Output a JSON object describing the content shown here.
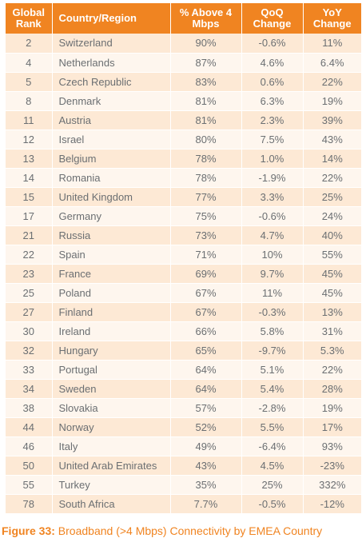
{
  "table": {
    "headers": {
      "rank": "Global Rank",
      "country": "Country/Region",
      "above4": "% Above 4 Mbps",
      "qoq": "QoQ Change",
      "yoy": "YoY Change"
    },
    "rows": [
      {
        "rank": "2",
        "country": "Switzerland",
        "above4": "90%",
        "qoq": "-0.6%",
        "yoy": "11%"
      },
      {
        "rank": "4",
        "country": "Netherlands",
        "above4": "87%",
        "qoq": "4.6%",
        "yoy": "6.4%"
      },
      {
        "rank": "5",
        "country": "Czech Republic",
        "above4": "83%",
        "qoq": "0.6%",
        "yoy": "22%"
      },
      {
        "rank": "8",
        "country": "Denmark",
        "above4": "81%",
        "qoq": "6.3%",
        "yoy": "19%"
      },
      {
        "rank": "11",
        "country": "Austria",
        "above4": "81%",
        "qoq": "2.3%",
        "yoy": "39%"
      },
      {
        "rank": "12",
        "country": "Israel",
        "above4": "80%",
        "qoq": "7.5%",
        "yoy": "43%"
      },
      {
        "rank": "13",
        "country": "Belgium",
        "above4": "78%",
        "qoq": "1.0%",
        "yoy": "14%"
      },
      {
        "rank": "14",
        "country": "Romania",
        "above4": "78%",
        "qoq": "-1.9%",
        "yoy": "22%"
      },
      {
        "rank": "15",
        "country": "United Kingdom",
        "above4": "77%",
        "qoq": "3.3%",
        "yoy": "25%"
      },
      {
        "rank": "17",
        "country": "Germany",
        "above4": "75%",
        "qoq": "-0.6%",
        "yoy": "24%"
      },
      {
        "rank": "21",
        "country": "Russia",
        "above4": "73%",
        "qoq": "4.7%",
        "yoy": "40%"
      },
      {
        "rank": "22",
        "country": "Spain",
        "above4": "71%",
        "qoq": "10%",
        "yoy": "55%"
      },
      {
        "rank": "23",
        "country": "France",
        "above4": "69%",
        "qoq": "9.7%",
        "yoy": "45%"
      },
      {
        "rank": "25",
        "country": "Poland",
        "above4": "67%",
        "qoq": "11%",
        "yoy": "45%"
      },
      {
        "rank": "27",
        "country": "Finland",
        "above4": "67%",
        "qoq": "-0.3%",
        "yoy": "13%"
      },
      {
        "rank": "30",
        "country": "Ireland",
        "above4": "66%",
        "qoq": "5.8%",
        "yoy": "31%"
      },
      {
        "rank": "32",
        "country": "Hungary",
        "above4": "65%",
        "qoq": "-9.7%",
        "yoy": "5.3%"
      },
      {
        "rank": "33",
        "country": "Portugal",
        "above4": "64%",
        "qoq": "5.1%",
        "yoy": "22%"
      },
      {
        "rank": "34",
        "country": "Sweden",
        "above4": "64%",
        "qoq": "5.4%",
        "yoy": "28%"
      },
      {
        "rank": "38",
        "country": "Slovakia",
        "above4": "57%",
        "qoq": "-2.8%",
        "yoy": "19%"
      },
      {
        "rank": "44",
        "country": "Norway",
        "above4": "52%",
        "qoq": "5.5%",
        "yoy": "17%"
      },
      {
        "rank": "46",
        "country": "Italy",
        "above4": "49%",
        "qoq": "-6.4%",
        "yoy": "93%"
      },
      {
        "rank": "50",
        "country": "United Arab Emirates",
        "above4": "43%",
        "qoq": "4.5%",
        "yoy": "-23%"
      },
      {
        "rank": "55",
        "country": "Turkey",
        "above4": "35%",
        "qoq": "25%",
        "yoy": "332%"
      },
      {
        "rank": "78",
        "country": "South Africa",
        "above4": "7.7%",
        "qoq": "-0.5%",
        "yoy": "-12%"
      }
    ]
  },
  "caption": {
    "figure": "Figure 33:",
    "text": " Broadband (>4 Mbps) Connectivity by EMEA Country"
  },
  "colors": {
    "header": "#f08421",
    "row_odd": "#fde9d5",
    "row_even": "#fef6ee",
    "text": "#6b6f72"
  }
}
